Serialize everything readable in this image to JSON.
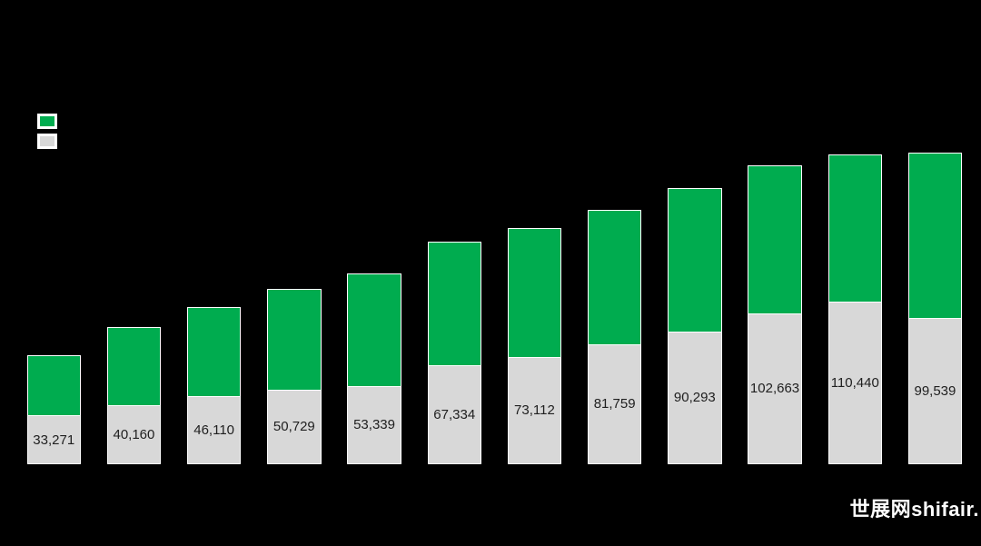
{
  "page": {
    "background": "#000000"
  },
  "legend": {
    "position": "top-left",
    "items": [
      {
        "label": "",
        "color": "#00AC4F"
      },
      {
        "label": "",
        "color": "#D8D8D8"
      }
    ]
  },
  "watermark": {
    "text": "世展网shifair.",
    "color": "#FFFFFF"
  },
  "chart_data": {
    "type": "bar",
    "stacked": true,
    "orientation": "vertical",
    "title": "",
    "categories": [
      "",
      "",
      "",
      "",
      "",
      "",
      "",
      "",
      "",
      "",
      "",
      ""
    ],
    "bar_count": 12,
    "series": [
      {
        "name": "top-segment-green",
        "color": "#00AC4F",
        "estimated": true,
        "values": [
          40700,
          52900,
          60800,
          68500,
          76100,
          83700,
          87200,
          90900,
          97100,
          100400,
          100200,
          111900
        ]
      },
      {
        "name": "bottom-segment-gray",
        "color": "#D8D8D8",
        "estimated": false,
        "values": [
          33271,
          40160,
          46110,
          50729,
          53339,
          67334,
          73112,
          81759,
          90293,
          102663,
          110440,
          99539
        ],
        "data_labels": [
          "33,271",
          "40,160",
          "46,110",
          "50,729",
          "53,339",
          "67,334",
          "73,112",
          "81,759",
          "90,293",
          "102,663",
          "110,440",
          "99,539"
        ]
      }
    ],
    "data_label_position": "center-of-gray-segment",
    "bar_outline_color": "#FFFFFF",
    "grid": false,
    "axes_visible": false,
    "legend_position": "top-left",
    "ylim": [
      0,
      215000
    ]
  }
}
